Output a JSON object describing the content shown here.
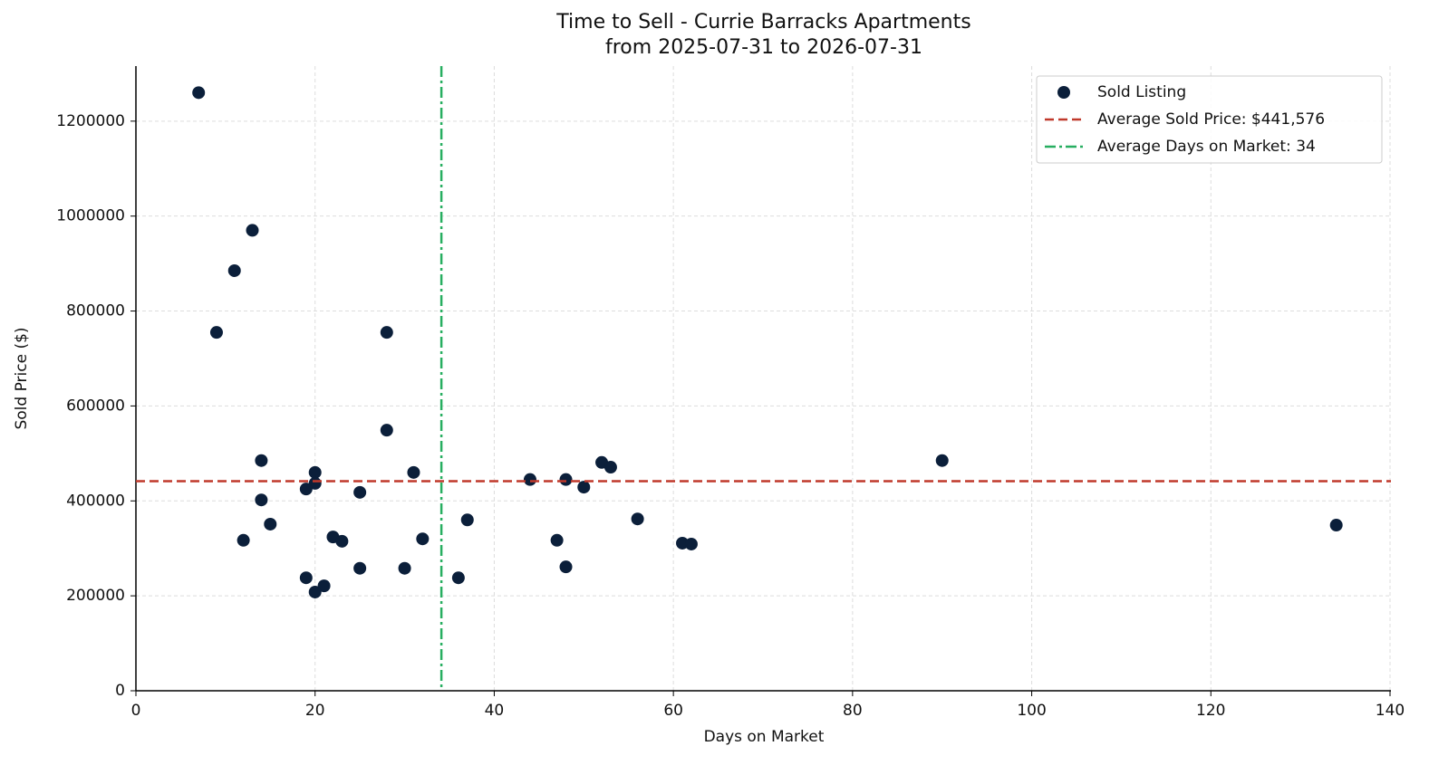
{
  "chart_data": {
    "type": "scatter",
    "title": "Time to Sell - Currie Barracks Apartments",
    "subtitle": "from 2025-07-31 to 2026-07-31",
    "x_label": "Days on Market",
    "y_label": "Sold Price ($)",
    "xlim": [
      0,
      140
    ],
    "ylim": [
      0,
      1316000
    ],
    "xticks": [
      0,
      20,
      40,
      60,
      80,
      100,
      120,
      140
    ],
    "yticks": [
      0,
      200000,
      400000,
      600000,
      800000,
      1000000,
      1200000
    ],
    "grid": true,
    "legend": "upper right",
    "series": [
      {
        "name": "Sold Listing",
        "color": "#0b1f3a",
        "x": [
          7,
          13,
          11,
          9,
          28,
          28,
          14,
          20,
          31,
          20,
          19,
          25,
          14,
          15,
          12,
          22,
          23,
          32,
          25,
          30,
          19,
          36,
          21,
          20,
          37,
          44,
          48,
          50,
          52,
          53,
          47,
          48,
          56,
          61,
          62,
          90,
          134
        ],
        "values": [
          1260000,
          970000,
          885000,
          755000,
          755000,
          549000,
          485000,
          460000,
          460000,
          437000,
          425000,
          418000,
          402000,
          351000,
          317000,
          324000,
          315000,
          320000,
          258000,
          258000,
          238000,
          238000,
          221000,
          208000,
          360000,
          445000,
          445000,
          429000,
          481000,
          471000,
          317000,
          261000,
          362000,
          311000,
          309000,
          485000,
          349000
        ]
      }
    ],
    "reference_lines": [
      {
        "name": "Average Sold Price: $441,576",
        "axis": "y",
        "value": 441576,
        "color": "#c0392b",
        "style": "dashed"
      },
      {
        "name": "Average Days on Market: 34",
        "axis": "x",
        "value": 34.1,
        "color": "#27ae60",
        "style": "dashdot"
      }
    ]
  }
}
